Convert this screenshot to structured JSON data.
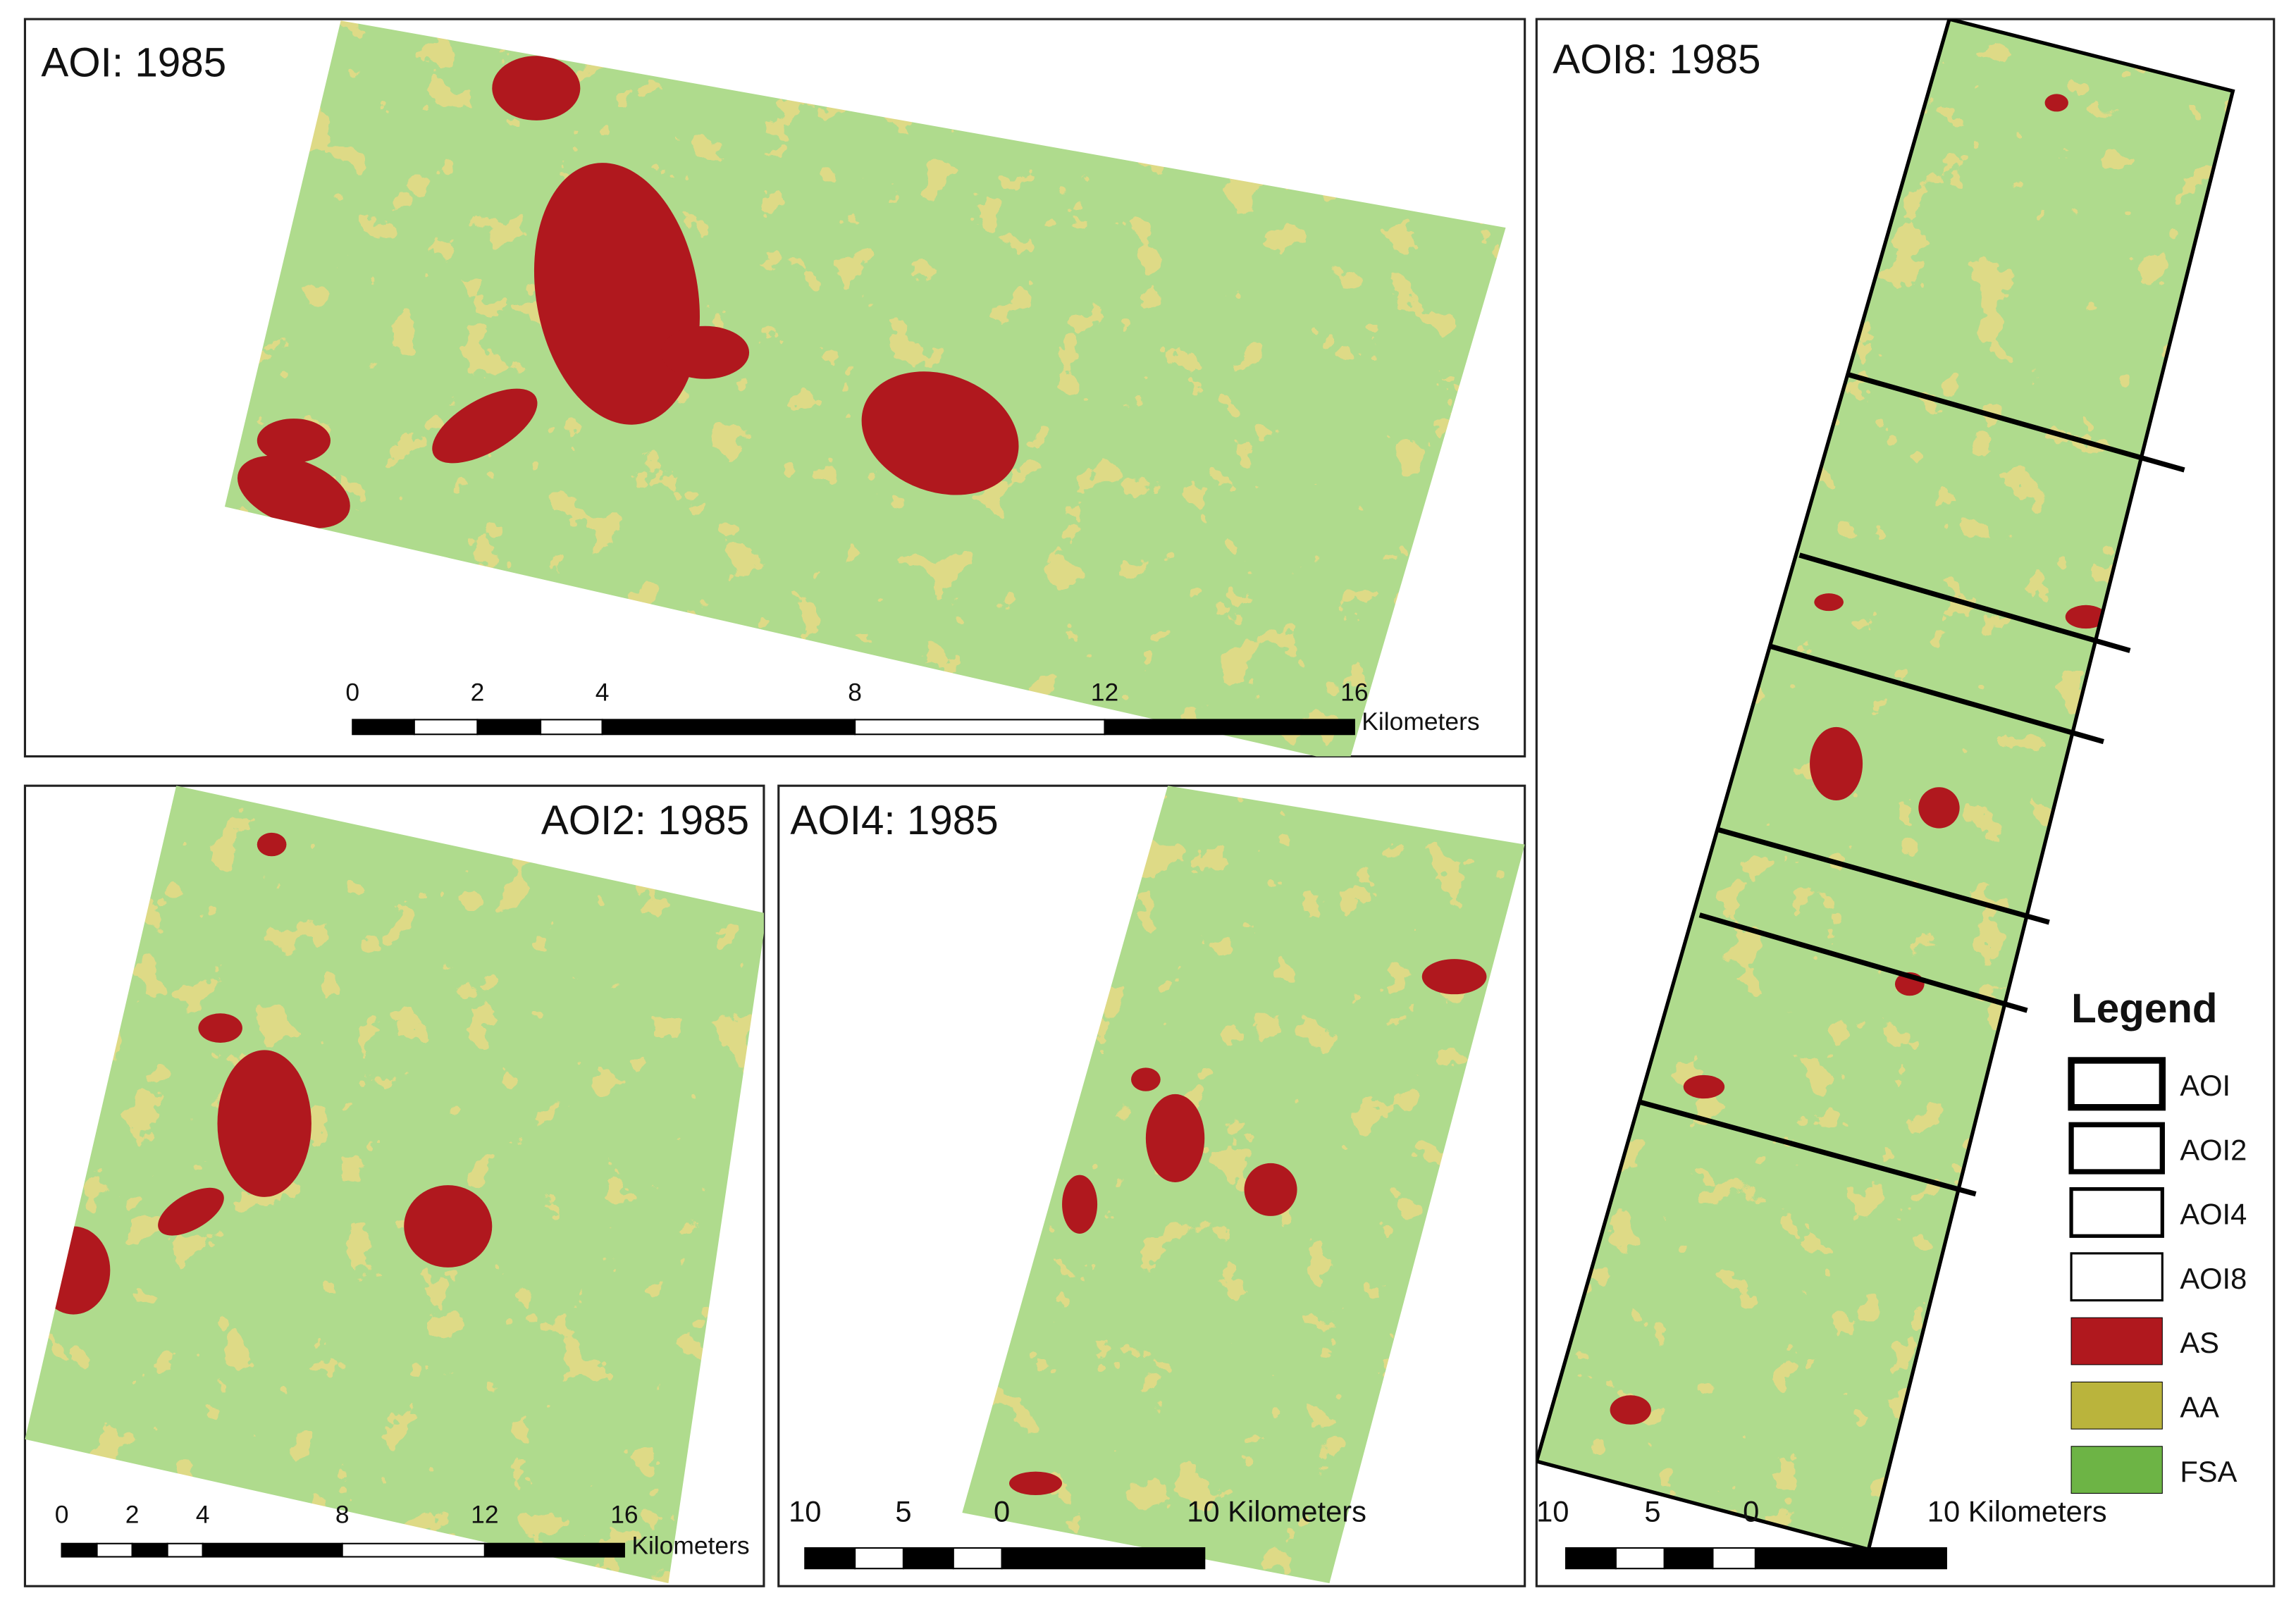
{
  "panels": [
    {
      "title": "AOI: 1985",
      "scale_labels": [
        "0",
        "2",
        "4",
        "8",
        "12",
        "16"
      ],
      "scale_unit": "Kilometers"
    },
    {
      "title": "AOI2: 1985",
      "scale_labels": [
        "0",
        "2",
        "4",
        "8",
        "12",
        "16"
      ],
      "scale_unit": "Kilometers"
    },
    {
      "title": "AOI4: 1985",
      "scale_labels": [
        "10",
        "5",
        "0",
        "10 Kilometers"
      ]
    },
    {
      "title": "AOI8: 1985",
      "scale_labels": [
        "10",
        "5",
        "0",
        "10 Kilometers"
      ]
    }
  ],
  "legend": {
    "title": "Legend",
    "items": [
      "AOI",
      "AOI2",
      "AOI4",
      "AOI8",
      "AS",
      "AA",
      "FSA"
    ]
  }
}
